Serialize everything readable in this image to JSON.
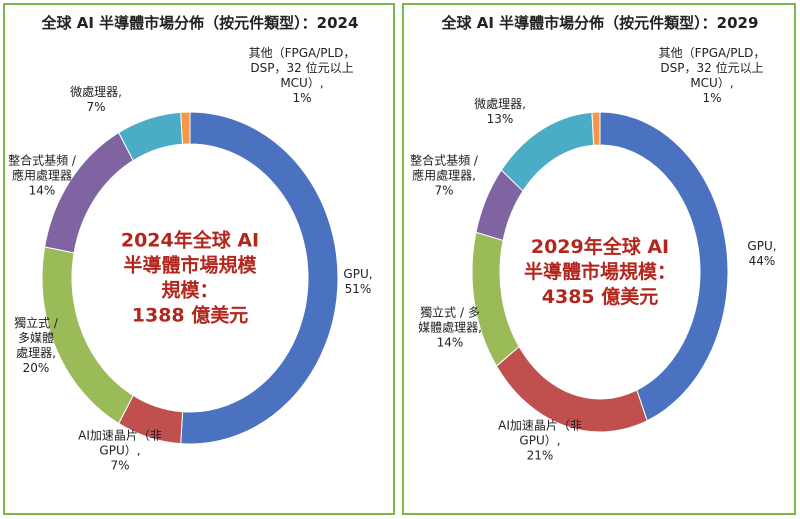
{
  "chart_data": [
    {
      "type": "donut",
      "title": "全球 AI 半導體市場分佈（按元件類型）：2024",
      "center_text": [
        "2024年全球 AI",
        "半導體市場規模",
        "規模：",
        "1388 億美元"
      ],
      "categories": [
        "GPU,",
        "AI加速晶片（非\nGPU）,",
        "獨立式 /\n多媒體\n處理器,",
        "整合式基頻 /\n應用處理器",
        "微處理器,",
        "其他（FPGA/PLD，\nDSP，32 位元以上\nMCU）,"
      ],
      "values": [
        51,
        7,
        20,
        14,
        7,
        1
      ],
      "value_labels": [
        "51%",
        "7%",
        "20%",
        "14%",
        "7%",
        "1%"
      ],
      "colors": [
        "#4a72c0",
        "#c0504d",
        "#9bbb59",
        "#8064a2",
        "#4bacc6",
        "#f79646"
      ]
    },
    {
      "type": "donut",
      "title": "全球 AI 半導體市場分佈（按元件類型）：2029",
      "center_text": [
        "2029年全球 AI",
        "半導體市場規模：",
        "4385 億美元"
      ],
      "categories": [
        "GPU,",
        "AI加速晶片（非\nGPU）,",
        "獨立式 / 多\n媒體處理器,",
        "整合式基頻 /\n應用處理器,",
        "微處理器,",
        "其他（FPGA/PLD，\nDSP，32 位元以上\nMCU）,"
      ],
      "values": [
        44,
        21,
        14,
        7,
        13,
        1
      ],
      "value_labels": [
        "44%",
        "21%",
        "14%",
        "7%",
        "13%",
        "1%"
      ],
      "colors": [
        "#4a72c0",
        "#c0504d",
        "#9bbb59",
        "#8064a2",
        "#4bacc6",
        "#f79646"
      ]
    }
  ]
}
